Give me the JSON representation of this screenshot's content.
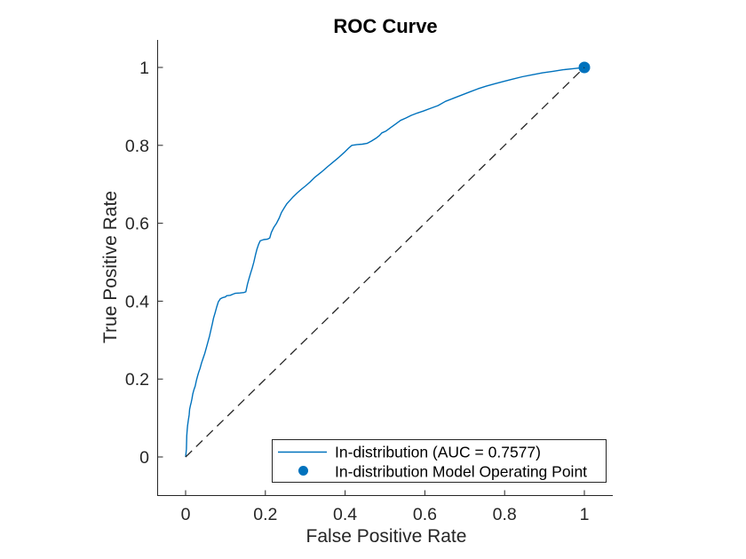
{
  "window": {
    "background": "#ffffff"
  },
  "chart_data": {
    "type": "line",
    "title": "ROC Curve",
    "xlabel": "False Positive Rate",
    "ylabel": "True Positive Rate",
    "x_ticks": [
      0,
      0.2,
      0.4,
      0.6,
      0.8,
      1
    ],
    "x_tick_labels": [
      "0",
      "0.2",
      "0.4",
      "0.6",
      "0.8",
      "1"
    ],
    "y_ticks": [
      0,
      0.2,
      0.4,
      0.6,
      0.8,
      1
    ],
    "y_tick_labels": [
      "0",
      "0.2",
      "0.4",
      "0.6",
      "0.8",
      "1"
    ],
    "xlim": [
      -0.07,
      1.07
    ],
    "ylim": [
      -0.1,
      1.07
    ],
    "grid": false,
    "auc": 0.7577,
    "legend_position": "inside-lower-right",
    "series": [
      {
        "name": "in-distribution-roc-curve",
        "label": "In-distribution (AUC = 0.7577)",
        "type": "line",
        "dashed": false,
        "color": "#0072BD",
        "width": 1.4,
        "points": [
          [
            0.0,
            0.0
          ],
          [
            0.002,
            0.02
          ],
          [
            0.003,
            0.055
          ],
          [
            0.004,
            0.07
          ],
          [
            0.005,
            0.08
          ],
          [
            0.007,
            0.095
          ],
          [
            0.009,
            0.108
          ],
          [
            0.01,
            0.122
          ],
          [
            0.012,
            0.132
          ],
          [
            0.014,
            0.14
          ],
          [
            0.016,
            0.15
          ],
          [
            0.018,
            0.162
          ],
          [
            0.021,
            0.173
          ],
          [
            0.024,
            0.182
          ],
          [
            0.027,
            0.196
          ],
          [
            0.03,
            0.208
          ],
          [
            0.033,
            0.218
          ],
          [
            0.036,
            0.227
          ],
          [
            0.04,
            0.242
          ],
          [
            0.044,
            0.254
          ],
          [
            0.048,
            0.266
          ],
          [
            0.052,
            0.28
          ],
          [
            0.056,
            0.295
          ],
          [
            0.06,
            0.31
          ],
          [
            0.064,
            0.328
          ],
          [
            0.067,
            0.342
          ],
          [
            0.07,
            0.356
          ],
          [
            0.074,
            0.37
          ],
          [
            0.078,
            0.385
          ],
          [
            0.082,
            0.398
          ],
          [
            0.087,
            0.406
          ],
          [
            0.093,
            0.409
          ],
          [
            0.1,
            0.411
          ],
          [
            0.103,
            0.414
          ],
          [
            0.112,
            0.415
          ],
          [
            0.119,
            0.418
          ],
          [
            0.124,
            0.42
          ],
          [
            0.136,
            0.421
          ],
          [
            0.146,
            0.422
          ],
          [
            0.151,
            0.424
          ],
          [
            0.155,
            0.443
          ],
          [
            0.159,
            0.458
          ],
          [
            0.163,
            0.472
          ],
          [
            0.167,
            0.485
          ],
          [
            0.171,
            0.5
          ],
          [
            0.175,
            0.518
          ],
          [
            0.179,
            0.534
          ],
          [
            0.183,
            0.546
          ],
          [
            0.187,
            0.555
          ],
          [
            0.196,
            0.558
          ],
          [
            0.205,
            0.559
          ],
          [
            0.211,
            0.562
          ],
          [
            0.215,
            0.576
          ],
          [
            0.221,
            0.589
          ],
          [
            0.228,
            0.6
          ],
          [
            0.235,
            0.614
          ],
          [
            0.24,
            0.627
          ],
          [
            0.247,
            0.639
          ],
          [
            0.254,
            0.65
          ],
          [
            0.262,
            0.659
          ],
          [
            0.27,
            0.668
          ],
          [
            0.28,
            0.678
          ],
          [
            0.291,
            0.688
          ],
          [
            0.301,
            0.696
          ],
          [
            0.312,
            0.706
          ],
          [
            0.324,
            0.718
          ],
          [
            0.34,
            0.731
          ],
          [
            0.357,
            0.746
          ],
          [
            0.37,
            0.757
          ],
          [
            0.385,
            0.77
          ],
          [
            0.398,
            0.782
          ],
          [
            0.409,
            0.793
          ],
          [
            0.417,
            0.8
          ],
          [
            0.43,
            0.802
          ],
          [
            0.443,
            0.803
          ],
          [
            0.455,
            0.805
          ],
          [
            0.466,
            0.811
          ],
          [
            0.477,
            0.818
          ],
          [
            0.486,
            0.825
          ],
          [
            0.492,
            0.832
          ],
          [
            0.503,
            0.837
          ],
          [
            0.515,
            0.846
          ],
          [
            0.527,
            0.855
          ],
          [
            0.539,
            0.864
          ],
          [
            0.552,
            0.87
          ],
          [
            0.566,
            0.877
          ],
          [
            0.581,
            0.883
          ],
          [
            0.596,
            0.888
          ],
          [
            0.614,
            0.895
          ],
          [
            0.633,
            0.902
          ],
          [
            0.652,
            0.913
          ],
          [
            0.672,
            0.921
          ],
          [
            0.692,
            0.929
          ],
          [
            0.712,
            0.937
          ],
          [
            0.733,
            0.945
          ],
          [
            0.754,
            0.952
          ],
          [
            0.775,
            0.958
          ],
          [
            0.797,
            0.964
          ],
          [
            0.82,
            0.97
          ],
          [
            0.844,
            0.976
          ],
          [
            0.869,
            0.981
          ],
          [
            0.895,
            0.986
          ],
          [
            0.921,
            0.99
          ],
          [
            0.947,
            0.994
          ],
          [
            0.974,
            0.997
          ],
          [
            1.0,
            1.0
          ]
        ]
      },
      {
        "name": "model-operating-point",
        "label": "In-distribution Model Operating Point",
        "type": "scatter",
        "color": "#0072BD",
        "marker_radius": 6.5,
        "points": [
          [
            1,
            1
          ]
        ]
      },
      {
        "name": "random-classifier-reference",
        "label": "",
        "type": "line",
        "dashed": true,
        "color": "#262626",
        "width": 1.3,
        "points": [
          [
            0,
            0
          ],
          [
            1,
            1
          ]
        ]
      }
    ]
  },
  "legend": {
    "items": [
      {
        "label": "In-distribution (AUC = 0.7577)",
        "marker": "line",
        "color": "#0072BD"
      },
      {
        "label": "In-distribution Model Operating Point",
        "marker": "dot",
        "color": "#0072BD"
      }
    ]
  },
  "colors": {
    "series_blue": "#0072BD",
    "axis": "#262626",
    "reference_line": "#262626",
    "legend_border": "#262626",
    "background": "#ffffff"
  }
}
